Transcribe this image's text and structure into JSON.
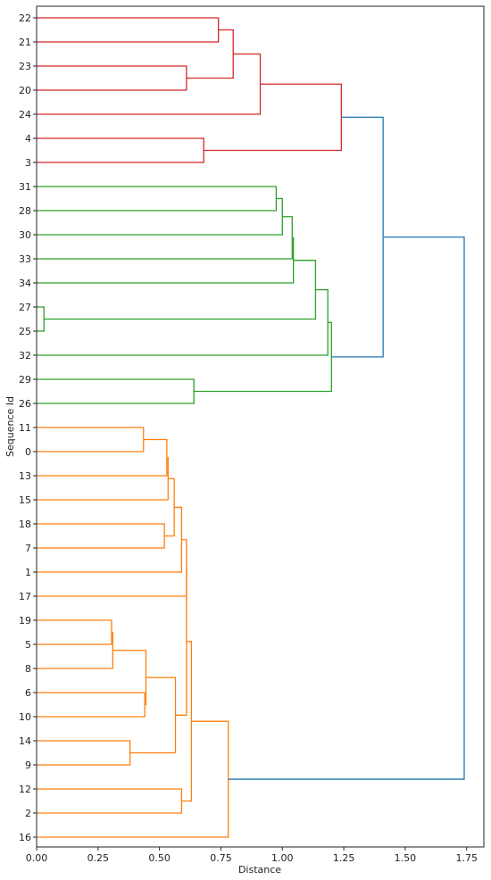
{
  "chart_data": {
    "type": "dendrogram",
    "orientation": "horizontal",
    "xlabel": "Distance",
    "ylabel": "Sequence Id",
    "xlim": [
      0,
      1.82
    ],
    "xticks": [
      0,
      0.25,
      0.5,
      0.75,
      1.0,
      1.25,
      1.5,
      1.75
    ],
    "xtick_labels": [
      "0.00",
      "0.25",
      "0.50",
      "0.75",
      "1.00",
      "1.25",
      "1.50",
      "1.75"
    ],
    "leaves": [
      "22",
      "21",
      "23",
      "20",
      "24",
      "4",
      "3",
      "31",
      "28",
      "30",
      "33",
      "34",
      "27",
      "25",
      "32",
      "29",
      "26",
      "11",
      "0",
      "13",
      "15",
      "18",
      "7",
      "1",
      "17",
      "19",
      "5",
      "8",
      "6",
      "10",
      "14",
      "9",
      "12",
      "2",
      "16"
    ],
    "colors": {
      "red": "#d62728",
      "green": "#2ca02c",
      "orange": "#ff7f0e",
      "blue": "#1f77b4",
      "axis": "#222222"
    },
    "links": [
      {
        "a": "22",
        "b": "21",
        "h": 0.74,
        "color": "red"
      },
      {
        "a": "23",
        "b": "20",
        "h": 0.61,
        "color": "red"
      },
      {
        "a": "L0",
        "b": "L1",
        "h": 0.8,
        "color": "red"
      },
      {
        "a": "L2",
        "b": "24",
        "h": 0.91,
        "color": "red"
      },
      {
        "a": "4",
        "b": "3",
        "h": 0.68,
        "color": "red"
      },
      {
        "a": "L3",
        "b": "L4",
        "h": 1.24,
        "color": "red"
      },
      {
        "a": "31",
        "b": "28",
        "h": 0.975,
        "color": "green"
      },
      {
        "a": "L6",
        "b": "30",
        "h": 1.0,
        "color": "green"
      },
      {
        "a": "L7",
        "b": "33",
        "h": 1.04,
        "color": "green"
      },
      {
        "a": "L8",
        "b": "34",
        "h": 1.045,
        "color": "green"
      },
      {
        "a": "27",
        "b": "25",
        "h": 0.03,
        "color": "green"
      },
      {
        "a": "L9",
        "b": "L10",
        "h": 1.135,
        "color": "green"
      },
      {
        "a": "L11",
        "b": "32",
        "h": 1.185,
        "color": "green"
      },
      {
        "a": "29",
        "b": "26",
        "h": 0.64,
        "color": "green"
      },
      {
        "a": "L12",
        "b": "L13",
        "h": 1.2,
        "color": "green"
      },
      {
        "a": "11",
        "b": "0",
        "h": 0.435,
        "color": "orange"
      },
      {
        "a": "L15",
        "b": "13",
        "h": 0.53,
        "color": "orange"
      },
      {
        "a": "L16",
        "b": "15",
        "h": 0.535,
        "color": "orange"
      },
      {
        "a": "18",
        "b": "7",
        "h": 0.52,
        "color": "orange"
      },
      {
        "a": "L17",
        "b": "L18",
        "h": 0.56,
        "color": "orange"
      },
      {
        "a": "L19",
        "b": "1",
        "h": 0.59,
        "color": "orange"
      },
      {
        "a": "L20",
        "b": "17",
        "h": 0.61,
        "color": "orange"
      },
      {
        "a": "19",
        "b": "5",
        "h": 0.305,
        "color": "orange"
      },
      {
        "a": "L22",
        "b": "8",
        "h": 0.31,
        "color": "orange"
      },
      {
        "a": "6",
        "b": "10",
        "h": 0.44,
        "color": "orange"
      },
      {
        "a": "L23",
        "b": "L24",
        "h": 0.445,
        "color": "orange"
      },
      {
        "a": "14",
        "b": "9",
        "h": 0.38,
        "color": "orange"
      },
      {
        "a": "L25",
        "b": "L26",
        "h": 0.565,
        "color": "orange"
      },
      {
        "a": "L21",
        "b": "L27",
        "h": 0.61,
        "color": "orange"
      },
      {
        "a": "12",
        "b": "2",
        "h": 0.59,
        "color": "orange"
      },
      {
        "a": "L28",
        "b": "L29",
        "h": 0.63,
        "color": "orange"
      },
      {
        "a": "L30",
        "b": "16",
        "h": 0.78,
        "color": "orange"
      },
      {
        "a": "L5",
        "b": "L14",
        "h": 1.41,
        "color": "blue"
      },
      {
        "a": "L32",
        "b": "L31",
        "h": 1.74,
        "color": "blue"
      }
    ]
  }
}
